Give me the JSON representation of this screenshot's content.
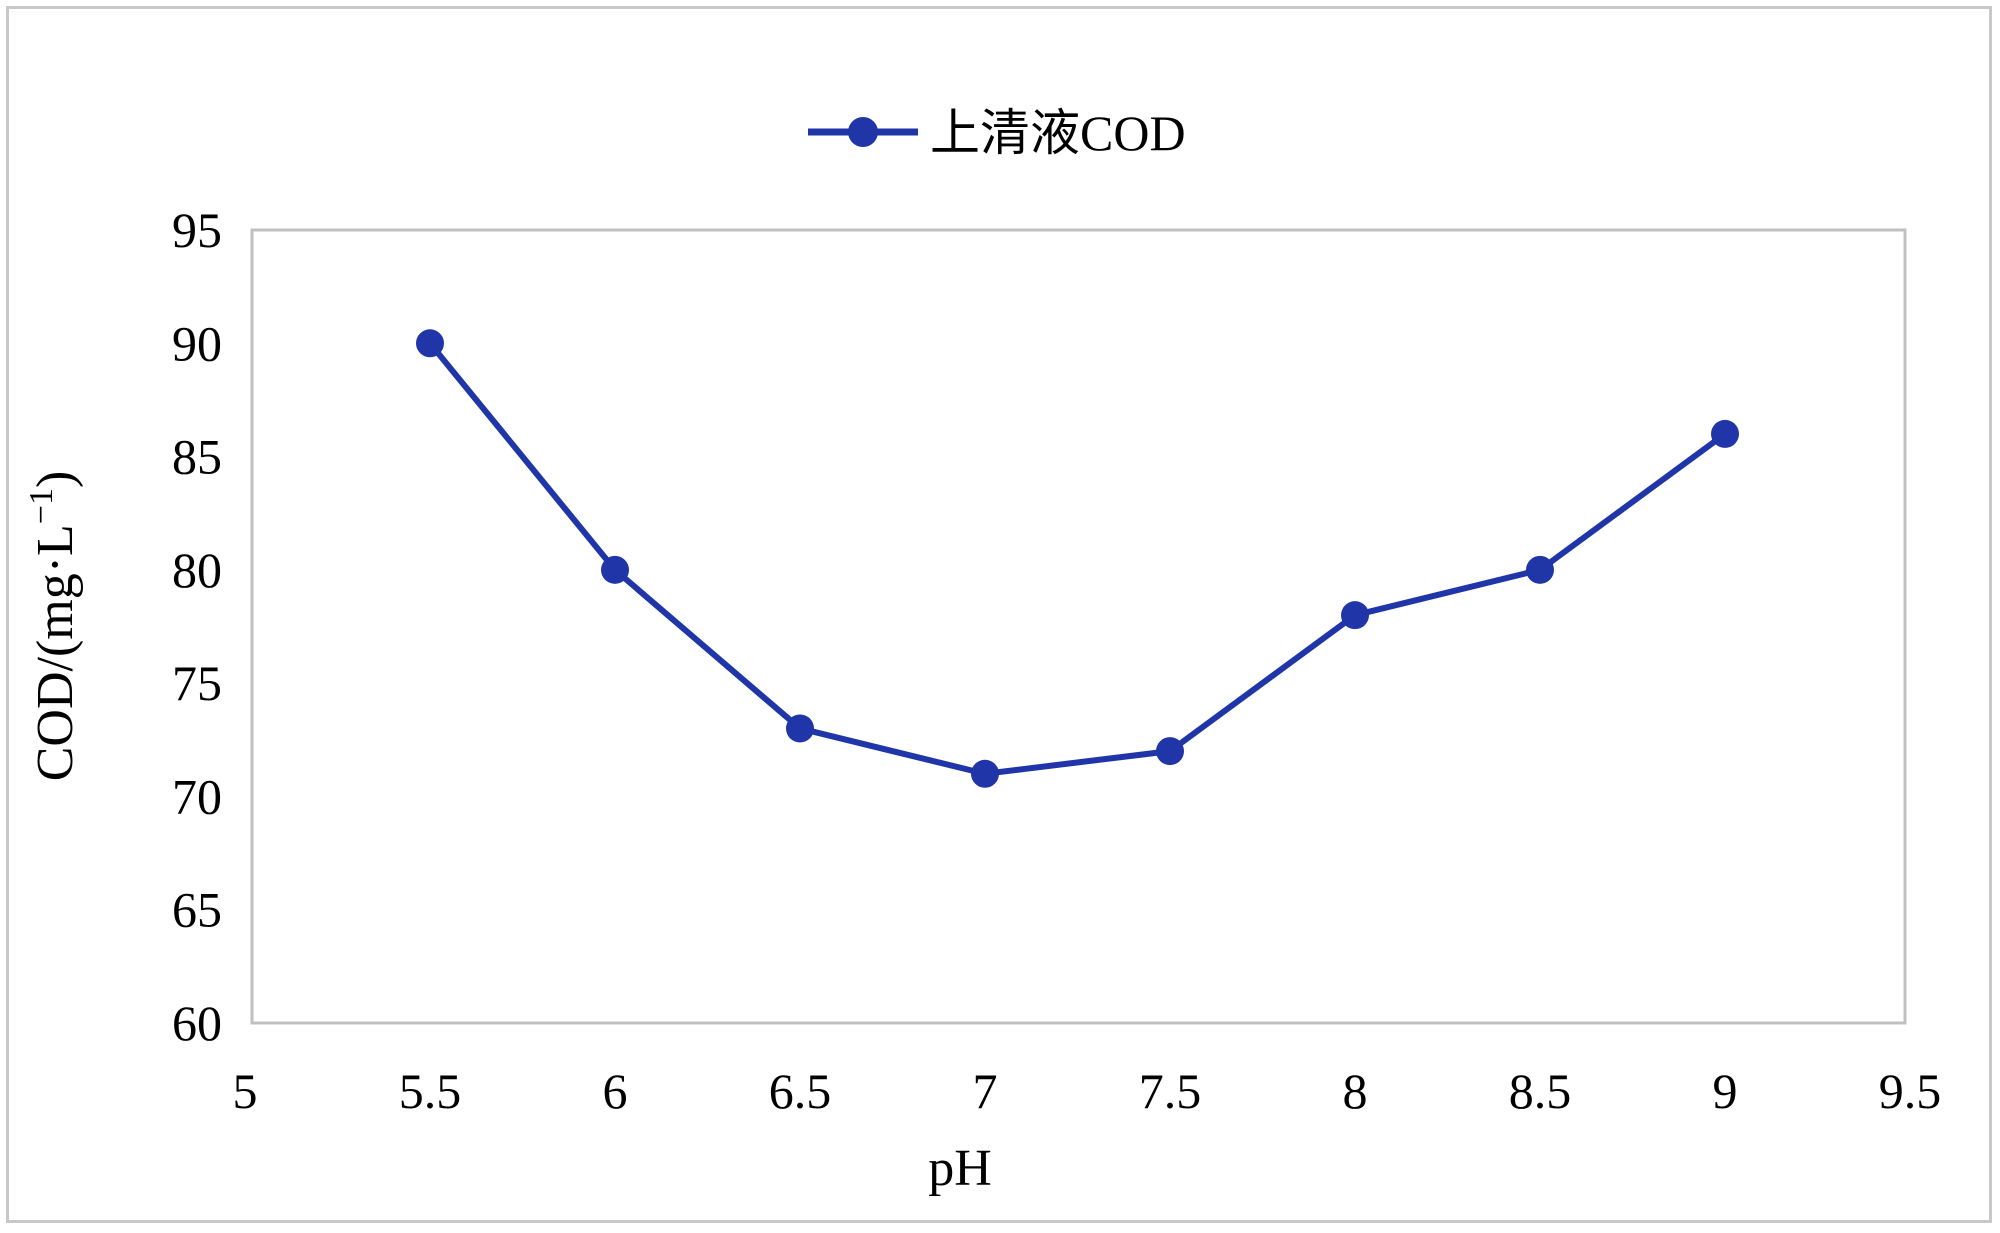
{
  "chart_data": {
    "type": "line",
    "title": "",
    "xlabel": "pH",
    "ylabel": "COD/(mg·L",
    "ylabel_sup": "−1",
    "ylabel_close": ")",
    "xlim": [
      5,
      9.5
    ],
    "ylim": [
      60,
      95
    ],
    "xticks": [
      "5",
      "5.5",
      "6",
      "6.5",
      "7",
      "7.5",
      "8",
      "8.5",
      "9",
      "9.5"
    ],
    "yticks": [
      "60",
      "65",
      "70",
      "75",
      "80",
      "85",
      "90",
      "95"
    ],
    "grid": false,
    "legend_position": "top-center",
    "series": [
      {
        "name": "上清液COD",
        "color": "#1f35a8",
        "x": [
          5.5,
          6,
          6.5,
          7,
          7.5,
          8,
          8.5,
          9
        ],
        "y": [
          90,
          80,
          73,
          71,
          72,
          78,
          80,
          86
        ]
      }
    ]
  },
  "colors": {
    "frame": "#c8c8c8",
    "plot_border": "#c0c0c0",
    "series": "#1f35a8"
  }
}
